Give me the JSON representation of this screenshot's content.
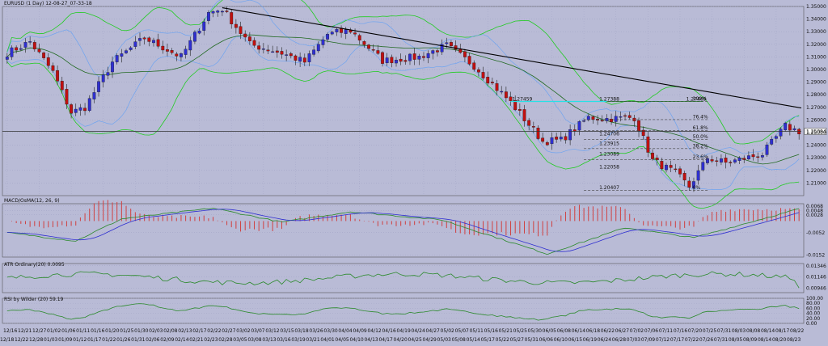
{
  "window": {
    "title": "EURUSD (1 Day) 12-08-27_07-33-18"
  },
  "colors": {
    "background": "#b9bbd6",
    "grid": "#9ea1c4",
    "bull_candle": "#2f2fd0",
    "bear_candle": "#c01010",
    "bollinger": "#22cc22",
    "ma_blue": "#6fa4f0",
    "ma_dark_green": "#226a22",
    "trendline": "#000000",
    "resistance": "#28e0e6",
    "fib_level": "#444444",
    "macd_line": "#2a8a2a",
    "signal_line": "#2f2fd0",
    "histogram": "#d04040",
    "atr_line": "#2a8a2a",
    "rsi_line": "#2a8a2a"
  },
  "panels": {
    "main": {
      "title": "EURUSD (1 Day) 12-08-27_07-33-18",
      "y_ticks": [
        "1.35000",
        "1.34000",
        "1.33000",
        "1.32000",
        "1.31000",
        "1.30000",
        "1.29000",
        "1.28000",
        "1.27000",
        "1.26000",
        "1.25000",
        "1.24000",
        "1.23000",
        "1.22000",
        "1.21000"
      ],
      "current_price": "1.25094",
      "annotations": [
        {
          "text": "1.27388",
          "price": 1.2745,
          "bar": 129
        },
        {
          "text": "1.27459",
          "price": 1.2745,
          "bar": 110
        },
        {
          "text": "1.27469",
          "price": 1.2745,
          "bar": 148
        },
        {
          "text": "1.24706",
          "price": 1.2467,
          "bar": 129
        },
        {
          "text": "1.23915",
          "price": 1.2392,
          "bar": 129
        },
        {
          "text": "1.23089",
          "price": 1.2309,
          "bar": 129
        },
        {
          "text": "1.22058",
          "price": 1.2206,
          "bar": 129
        },
        {
          "text": "1.20407",
          "price": 1.2041,
          "bar": 129
        }
      ],
      "fib_levels": [
        {
          "label": "100%",
          "price": 1.2747
        },
        {
          "label": "76.4%",
          "price": 1.2603
        },
        {
          "label": "61.8%",
          "price": 1.2515
        },
        {
          "label": "50.0%",
          "price": 1.2444
        },
        {
          "label": "38.2%",
          "price": 1.2373
        },
        {
          "label": "23.6%",
          "price": 1.2284
        },
        {
          "label": "0%",
          "price": 1.2041
        }
      ]
    },
    "macd": {
      "title": "MACD/OsMA(12, 26, 9)",
      "y_ticks": [
        "0.0068",
        "0.0048",
        "0.0028",
        "-0.0052",
        "-0.0152"
      ]
    },
    "atr": {
      "title": "ATR Ordinary(20) 0.0095",
      "y_ticks": [
        "0.01346",
        "0.01146",
        "0.00946"
      ]
    },
    "rsi": {
      "title": "RSI by Wilder (20) 59.19",
      "y_ticks": [
        "100.00",
        "80.00",
        "60.00",
        "40.00",
        "20.00",
        "0.00"
      ]
    }
  },
  "x_axis": {
    "labels_row1": [
      "12/16",
      "12/21",
      "12/27",
      "01/02",
      "01/06",
      "01/11",
      "01/16",
      "01/20",
      "01/25",
      "01/30",
      "02/03",
      "02/08",
      "02/13",
      "02/17",
      "02/22",
      "02/27",
      "03/02",
      "03/07",
      "03/12",
      "03/15",
      "03/18",
      "03/26",
      "03/30",
      "04/04",
      "04/09",
      "04/12",
      "04/16",
      "04/19",
      "04/24",
      "04/27",
      "05/02",
      "05/07",
      "05/11",
      "05/16",
      "05/21",
      "05/25",
      "05/30",
      "06/05",
      "06/08",
      "06/14",
      "06/18",
      "06/22",
      "06/27",
      "07/02",
      "07/06",
      "07/11",
      "07/16",
      "07/20",
      "07/25",
      "07/31",
      "08/03",
      "08/08",
      "08/14",
      "08/17",
      "08/22"
    ],
    "labels_row2": [
      "12/18",
      "12/22",
      "12/28",
      "01/03",
      "01/09",
      "01/12",
      "01/17",
      "01/22",
      "01/26",
      "01/31",
      "02/06",
      "02/09",
      "02/14",
      "02/21",
      "02/23",
      "02/28",
      "03/05",
      "03/08",
      "03/13",
      "03/16",
      "03/19",
      "03/21",
      "04/01",
      "04/05",
      "04/10",
      "04/13",
      "04/17",
      "04/20",
      "04/25",
      "04/29",
      "05/03",
      "05/08",
      "05/14",
      "05/17",
      "05/22",
      "05/27",
      "05/31",
      "06/06",
      "06/10",
      "06/15",
      "06/19",
      "06/24",
      "06/28",
      "07/03",
      "07/09",
      "07/12",
      "07/17",
      "07/22",
      "07/26",
      "07/31",
      "08/05",
      "08/09",
      "08/14",
      "08/20",
      "08/23"
    ]
  },
  "chart_data": {
    "type": "candlestick",
    "symbol": "EURUSD",
    "timeframe": "1 Day",
    "ylim": [
      1.2,
      1.35
    ],
    "anchors": [
      {
        "bar": 0,
        "price": 1.313
      },
      {
        "bar": 5,
        "price": 1.322
      },
      {
        "bar": 10,
        "price": 1.298
      },
      {
        "bar": 14,
        "price": 1.266
      },
      {
        "bar": 17,
        "price": 1.27
      },
      {
        "bar": 23,
        "price": 1.306
      },
      {
        "bar": 30,
        "price": 1.325
      },
      {
        "bar": 38,
        "price": 1.31
      },
      {
        "bar": 44,
        "price": 1.345
      },
      {
        "bar": 47,
        "price": 1.348
      },
      {
        "bar": 53,
        "price": 1.32
      },
      {
        "bar": 60,
        "price": 1.313
      },
      {
        "bar": 65,
        "price": 1.306
      },
      {
        "bar": 70,
        "price": 1.328
      },
      {
        "bar": 75,
        "price": 1.331
      },
      {
        "bar": 82,
        "price": 1.307
      },
      {
        "bar": 90,
        "price": 1.31
      },
      {
        "bar": 96,
        "price": 1.319
      },
      {
        "bar": 102,
        "price": 1.303
      },
      {
        "bar": 110,
        "price": 1.274
      },
      {
        "bar": 117,
        "price": 1.243
      },
      {
        "bar": 121,
        "price": 1.244
      },
      {
        "bar": 127,
        "price": 1.262
      },
      {
        "bar": 131,
        "price": 1.261
      },
      {
        "bar": 137,
        "price": 1.262
      },
      {
        "bar": 141,
        "price": 1.228
      },
      {
        "bar": 146,
        "price": 1.218
      },
      {
        "bar": 149,
        "price": 1.207
      },
      {
        "bar": 153,
        "price": 1.23
      },
      {
        "bar": 157,
        "price": 1.226
      },
      {
        "bar": 165,
        "price": 1.233
      },
      {
        "bar": 170,
        "price": 1.255
      },
      {
        "bar": 173,
        "price": 1.251
      }
    ],
    "macd_anchors": [
      {
        "bar": 0,
        "value": -0.0052
      },
      {
        "bar": 15,
        "value": -0.009
      },
      {
        "bar": 25,
        "value": 0.001
      },
      {
        "bar": 45,
        "value": 0.0058
      },
      {
        "bar": 60,
        "value": -0.0005
      },
      {
        "bar": 75,
        "value": 0.0042
      },
      {
        "bar": 95,
        "value": 0.0005
      },
      {
        "bar": 118,
        "value": -0.0148
      },
      {
        "bar": 135,
        "value": -0.003
      },
      {
        "bar": 150,
        "value": -0.0075
      },
      {
        "bar": 165,
        "value": 0.001
      },
      {
        "bar": 173,
        "value": 0.0055
      }
    ],
    "atr_range": [
      0.00946,
      0.01346
    ],
    "rsi_range": [
      0,
      100
    ],
    "current_rsi": 59.19,
    "current_atr": 0.0095
  }
}
